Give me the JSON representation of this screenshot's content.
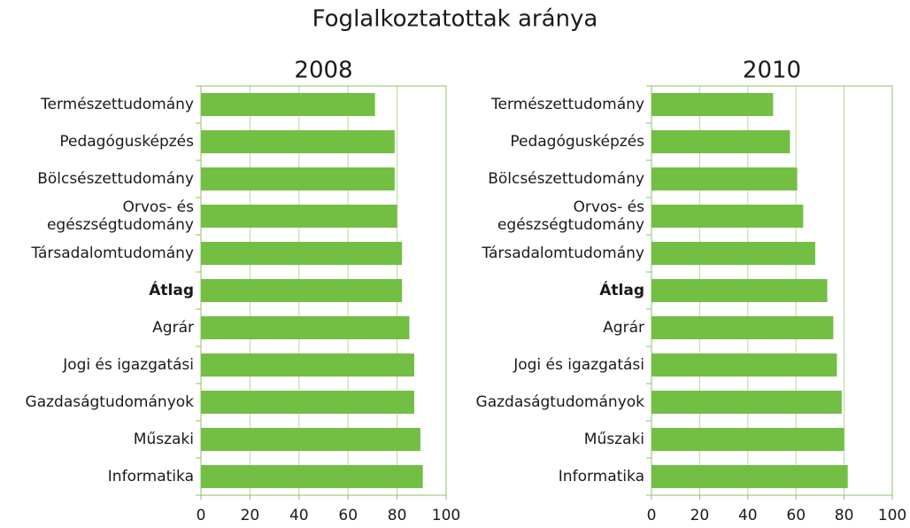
{
  "title": "Foglalkoztatottak aránya",
  "chart_data": [
    {
      "type": "bar",
      "orientation": "horizontal",
      "title": "2008",
      "categories": [
        "Természettudomány",
        "Pedagógusképzés",
        "Bölcsészettudomány",
        "Orvos- és\negészségtudomány",
        "Társadalomtudomány",
        "Átlag",
        "Agrár",
        "Jogi és igazgatási",
        "Gazdaságtudományok",
        "Műszaki",
        "Informatika"
      ],
      "values": [
        71,
        79,
        79,
        80,
        82,
        82,
        85,
        87,
        87,
        89.5,
        90.5
      ],
      "bold_category": 5,
      "color": "#72bf44",
      "xlim": [
        0,
        100
      ],
      "xticks": [
        0,
        20,
        40,
        60,
        80,
        100
      ],
      "grid": true
    },
    {
      "type": "bar",
      "orientation": "horizontal",
      "title": "2010",
      "categories": [
        "Természettudomány",
        "Pedagógusképzés",
        "Bölcsészettudomány",
        "Orvos- és\negészségtudomány",
        "Társadalomtudomány",
        "Átlag",
        "Agrár",
        "Jogi és igazgatási",
        "Gazdaságtudományok",
        "Műszaki",
        "Informatika"
      ],
      "values": [
        50.5,
        57.5,
        60.5,
        63,
        68,
        73,
        75.5,
        77,
        79,
        80,
        81.5
      ],
      "bold_category": 5,
      "color": "#72bf44",
      "xlim": [
        0,
        100
      ],
      "xticks": [
        0,
        20,
        40,
        60,
        80,
        100
      ],
      "grid": true
    }
  ]
}
